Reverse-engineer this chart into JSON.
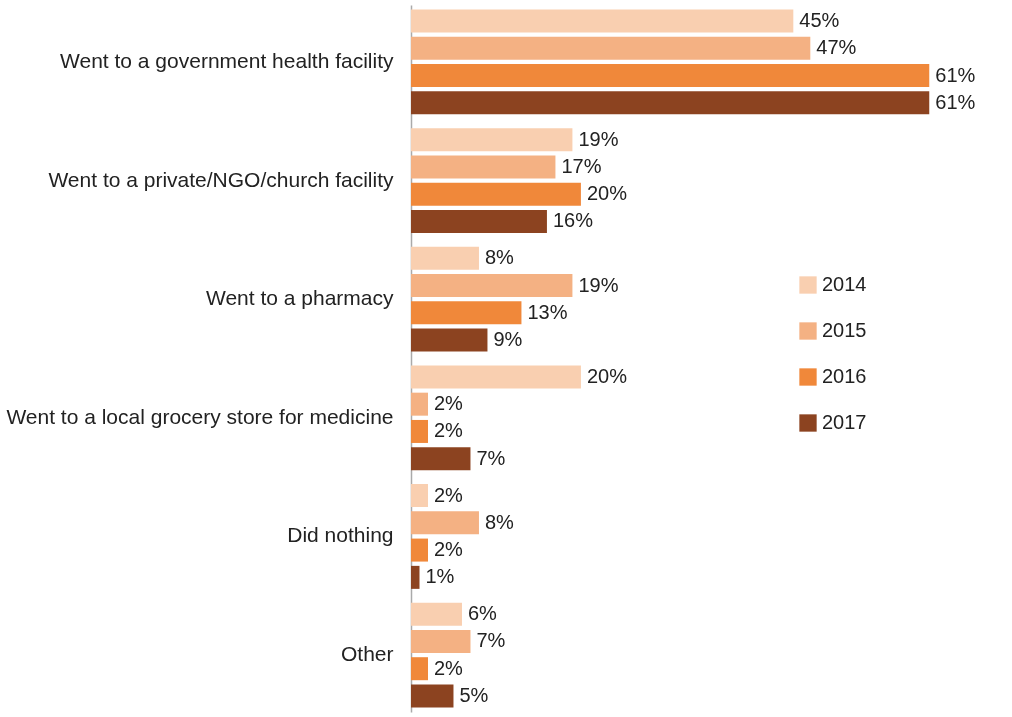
{
  "chart_data": {
    "type": "bar",
    "orientation": "horizontal",
    "legend": "right",
    "categories": [
      "Went to a government health facility",
      "Went to a private/NGO/church facility",
      "Went to a pharmacy",
      "Went to a local grocery store for medicine",
      "Did nothing",
      "Other"
    ],
    "series": [
      {
        "name": "2014",
        "color": "#f9cfb0",
        "values": [
          45,
          19,
          8,
          20,
          2,
          6
        ],
        "value_labels": [
          "45%",
          "19%",
          "8%",
          "20%",
          "2%",
          "6%"
        ]
      },
      {
        "name": "2015",
        "color": "#f4b183",
        "values": [
          47,
          17,
          19,
          2,
          8,
          7
        ],
        "value_labels": [
          "47%",
          "17%",
          "19%",
          "2%",
          "8%",
          "7%"
        ]
      },
      {
        "name": "2016",
        "color": "#f0883a",
        "values": [
          61,
          20,
          13,
          2,
          2,
          2
        ],
        "value_labels": [
          "61%",
          "20%",
          "13%",
          "2%",
          "2%",
          "2%"
        ]
      },
      {
        "name": "2017",
        "color": "#8c4320",
        "values": [
          61,
          16,
          9,
          7,
          1,
          5
        ],
        "value_labels": [
          "61%",
          "16%",
          "9%",
          "7%",
          "1%",
          "5%"
        ]
      }
    ]
  }
}
